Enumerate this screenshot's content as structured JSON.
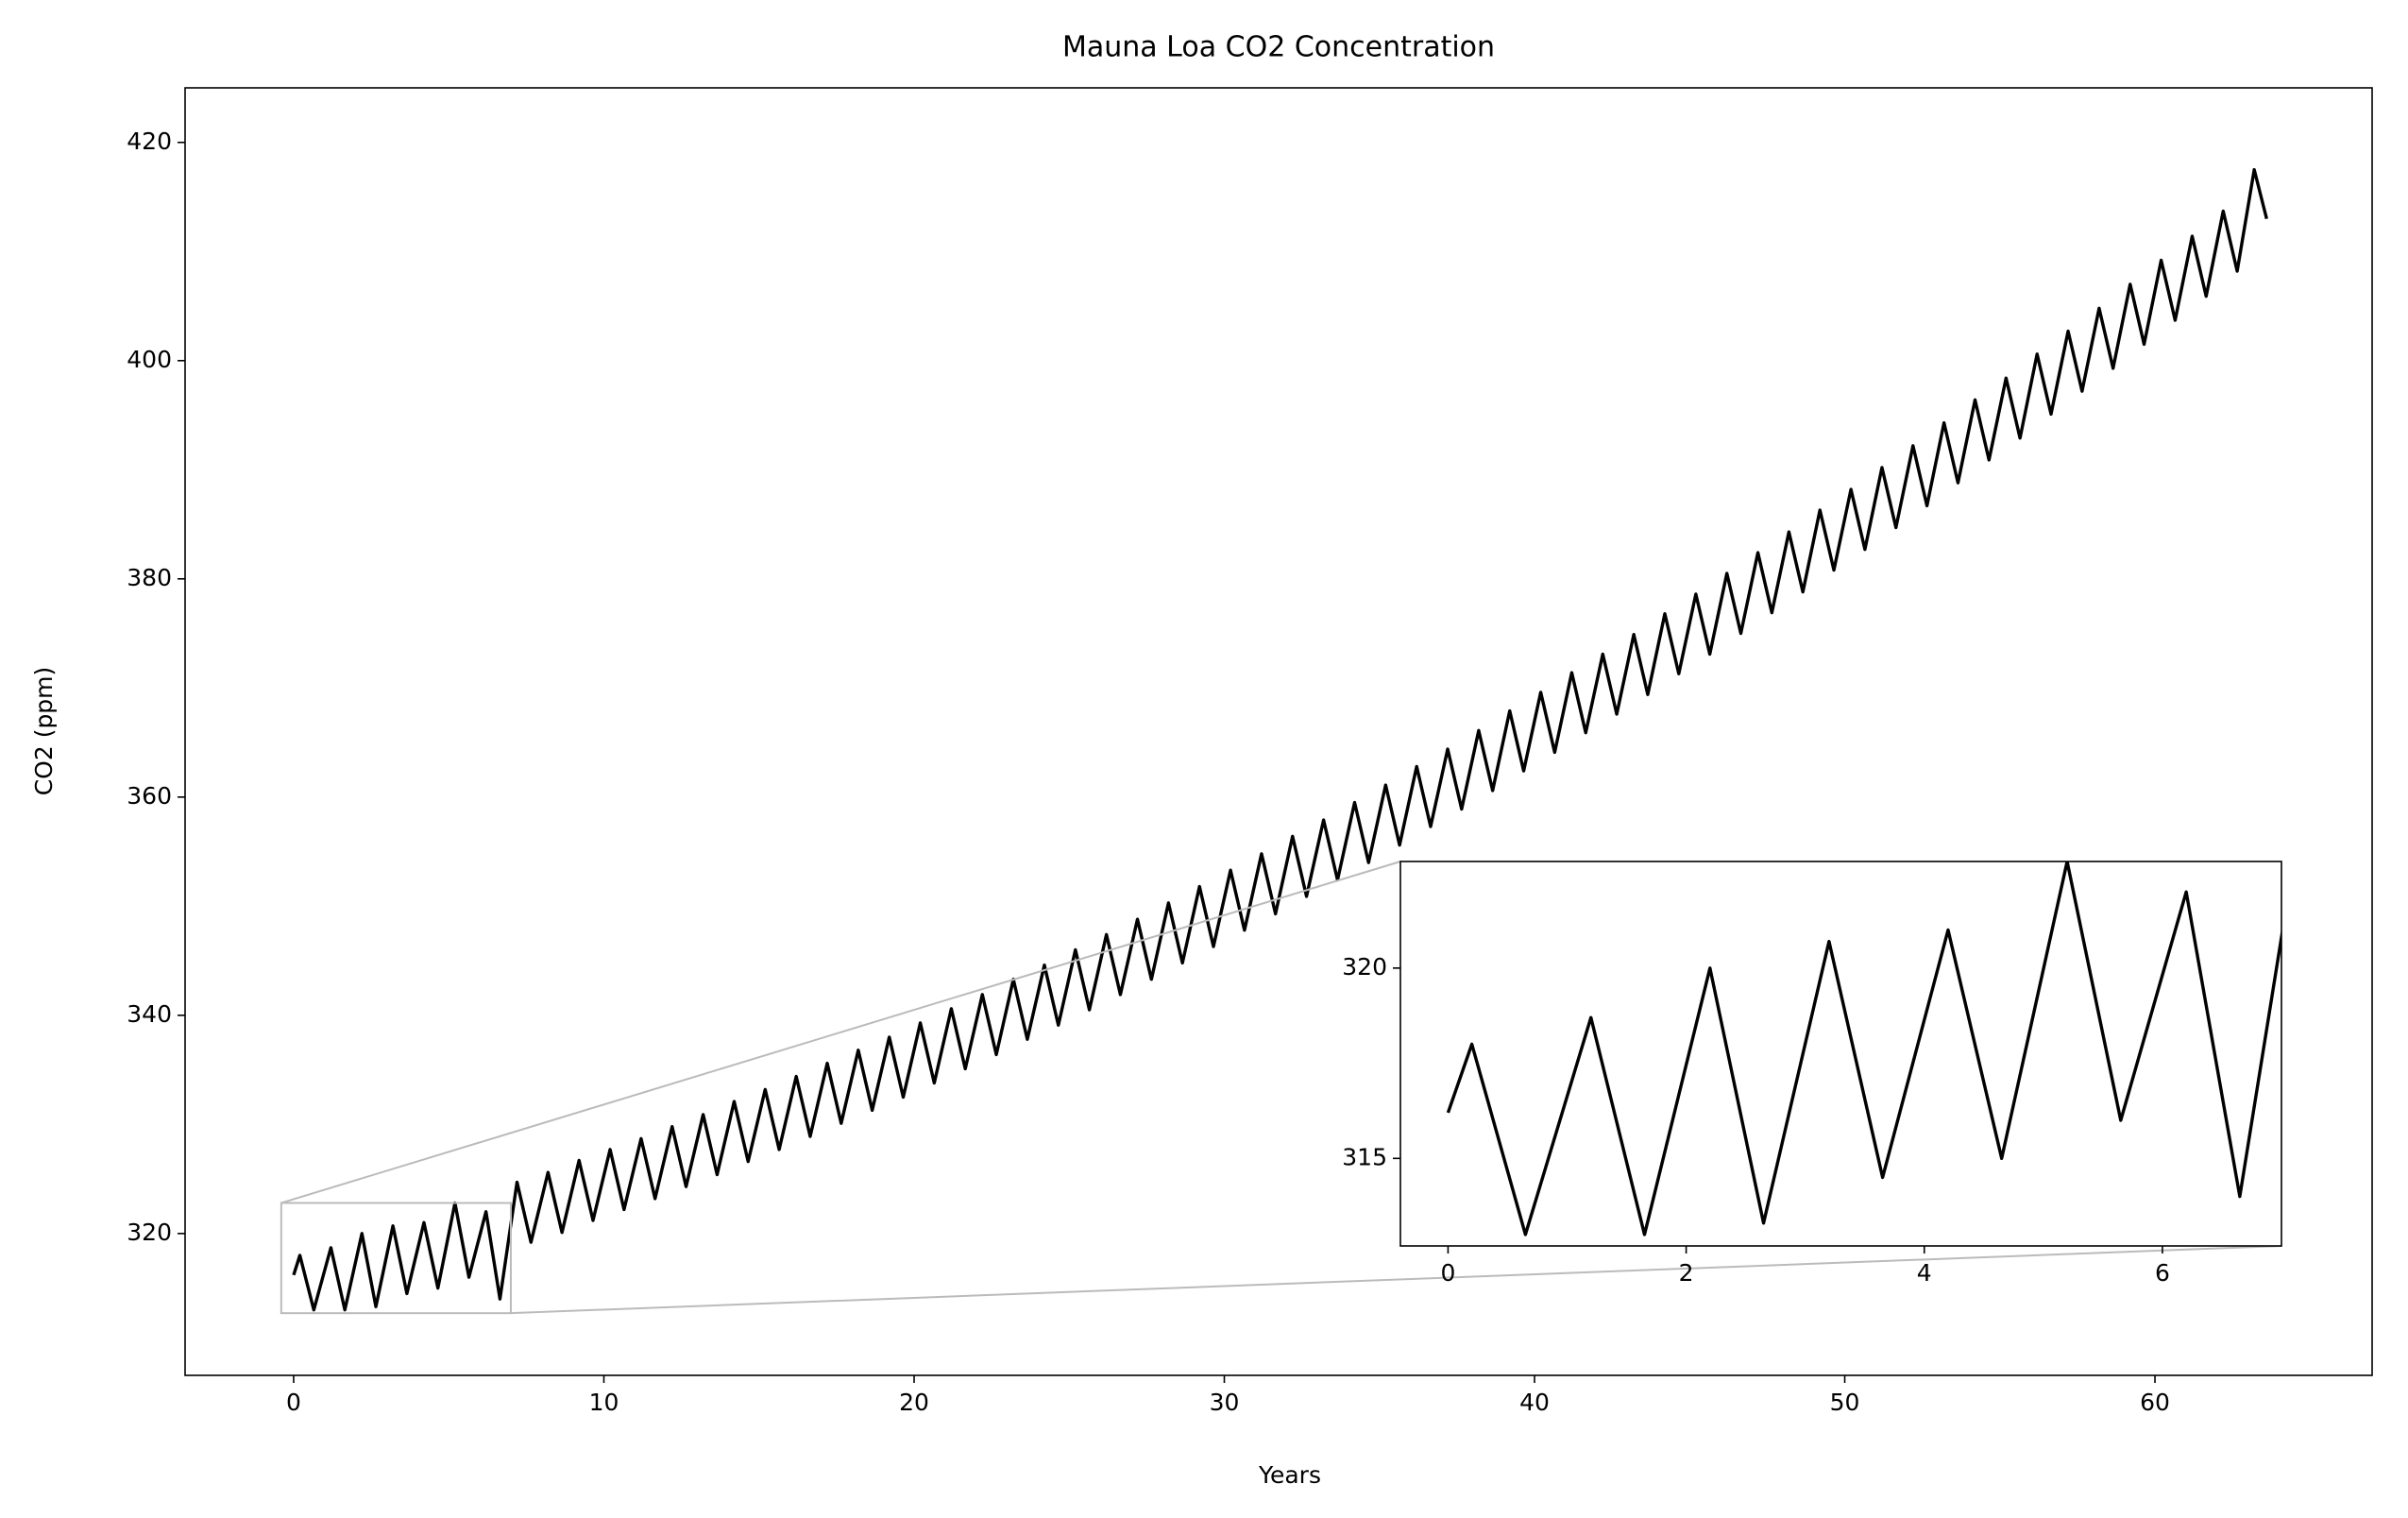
{
  "chart_data": {
    "type": "line",
    "title": "Mauna Loa CO2 Concentration",
    "xlabel": "Years",
    "ylabel": "CO2 (ppm)",
    "color": "#000000",
    "x": [
      0,
      0.2,
      0.65,
      1.2,
      1.65,
      2.2,
      2.65,
      3.2,
      3.65,
      4.2,
      4.65,
      5.2,
      5.65,
      6.2,
      6.65,
      7.2,
      7.65,
      8.2,
      8.65,
      9.2,
      9.65,
      10.2,
      10.65,
      11.2,
      11.65,
      12.2,
      12.65,
      13.2,
      13.65,
      14.2,
      14.65,
      15.2,
      15.65,
      16.2,
      16.65,
      17.2,
      17.65,
      18.2,
      18.65,
      19.2,
      19.65,
      20.2,
      20.65,
      21.2,
      21.65,
      22.2,
      22.65,
      23.2,
      23.65,
      24.2,
      24.65,
      25.2,
      25.65,
      26.2,
      26.65,
      27.2,
      27.65,
      28.2,
      28.65,
      29.2,
      29.65,
      30.2,
      30.65,
      31.2,
      31.65,
      32.2,
      32.65,
      33.2,
      33.65,
      34.2,
      34.65,
      35.2,
      35.65,
      36.2,
      36.65,
      37.2,
      37.65,
      38.2,
      38.65,
      39.2,
      39.65,
      40.2,
      40.65,
      41.2,
      41.65,
      42.2,
      42.65,
      43.2,
      43.65,
      44.2,
      44.65,
      45.2,
      45.65,
      46.2,
      46.65,
      47.2,
      47.65,
      48.2,
      48.65,
      49.2,
      49.65,
      50.2,
      50.65,
      51.2,
      51.65,
      52.2,
      52.65,
      53.2,
      53.65,
      54.2,
      54.65,
      55.2,
      55.65,
      56.2,
      56.65,
      57.2,
      57.65,
      58.2,
      58.65,
      59.2,
      59.65,
      60.2,
      60.65,
      61.2,
      61.65,
      62.2,
      62.65,
      63.2,
      63.6
    ],
    "values": [
      316.2,
      318.0,
      313.0,
      318.7,
      313.0,
      320.0,
      313.3,
      320.7,
      314.5,
      321.0,
      315.0,
      322.8,
      316.0,
      322.0,
      314.0,
      324.7,
      319.2,
      325.6,
      320.1,
      326.7,
      321.2,
      327.7,
      322.2,
      328.7,
      323.2,
      329.8,
      324.3,
      330.9,
      325.4,
      332.1,
      326.6,
      333.2,
      327.7,
      334.4,
      328.9,
      335.6,
      330.1,
      336.8,
      331.3,
      338.0,
      332.5,
      339.3,
      333.8,
      340.6,
      335.1,
      341.9,
      336.4,
      343.3,
      337.8,
      344.6,
      339.1,
      346.0,
      340.5,
      347.4,
      341.9,
      348.8,
      343.3,
      350.3,
      344.8,
      351.8,
      346.3,
      353.3,
      347.8,
      354.8,
      349.3,
      356.4,
      350.9,
      357.9,
      352.4,
      359.5,
      354.0,
      361.1,
      355.6,
      362.8,
      357.3,
      364.4,
      358.9,
      366.1,
      360.6,
      367.9,
      362.4,
      369.6,
      364.1,
      371.4,
      365.9,
      373.1,
      367.6,
      374.9,
      369.4,
      376.8,
      371.3,
      378.6,
      373.1,
      380.5,
      375.0,
      382.4,
      376.9,
      384.3,
      378.8,
      386.3,
      380.8,
      388.2,
      382.7,
      390.2,
      384.7,
      392.2,
      386.7,
      394.3,
      388.8,
      396.4,
      390.9,
      398.4,
      392.9,
      400.6,
      395.1,
      402.7,
      397.2,
      404.8,
      399.3,
      407.0,
      401.5,
      409.2,
      403.7,
      411.4,
      405.9,
      413.7,
      408.2,
      417.5,
      413.0
    ],
    "xlim": [
      -3.5,
      67
    ],
    "ylim": [
      307,
      425
    ],
    "xticks": [
      0,
      10,
      20,
      30,
      40,
      50,
      60
    ],
    "yticks": [
      320,
      340,
      360,
      380,
      400,
      420
    ],
    "inset": {
      "xlim": [
        -0.4,
        7.0
      ],
      "ylim": [
        312.7,
        322.8
      ],
      "xticks": [
        0,
        2,
        4,
        6
      ],
      "yticks": [
        315,
        320
      ]
    }
  }
}
